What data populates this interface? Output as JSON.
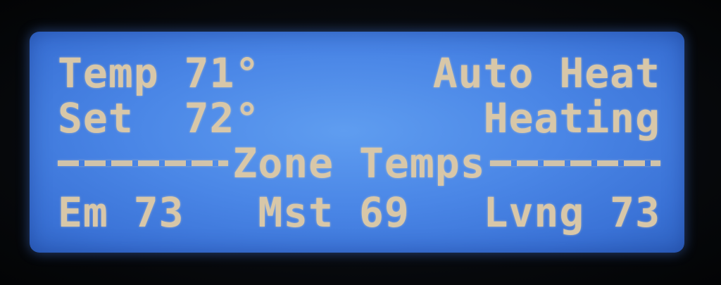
{
  "display": {
    "temp": {
      "label": "Temp",
      "value": "71°"
    },
    "mode": "Auto Heat",
    "set": {
      "label": "Set",
      "value": "72°"
    },
    "status": "Heating",
    "zone_header": "Zone Temps",
    "zones": [
      {
        "name": "Em",
        "value": "73"
      },
      {
        "name": "Mst",
        "value": "69"
      },
      {
        "name": "Lvng",
        "value": "73"
      }
    ]
  },
  "colors": {
    "lcd_background": "#4a86e6",
    "lcd_text": "#d8c7a8",
    "bezel": "#07090d"
  }
}
